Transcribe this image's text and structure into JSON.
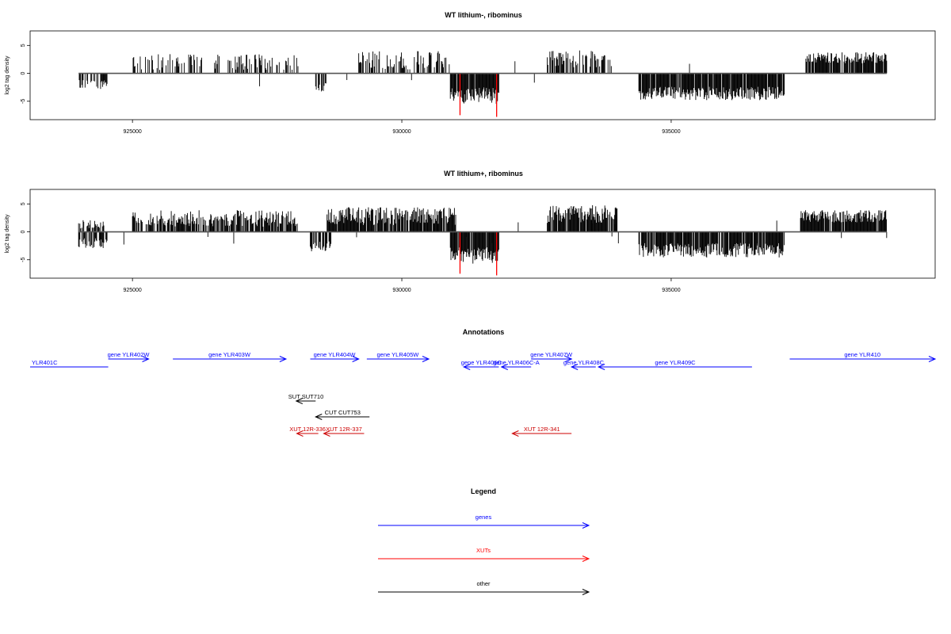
{
  "chart_data": [
    {
      "type": "bar",
      "title": "WT lithium-, ribominus",
      "ylabel": "log2 tag density",
      "xlabel": "",
      "xlim": [
        923100,
        939900
      ],
      "ylim": [
        -8.3,
        7.6
      ],
      "xticks": [
        925000,
        930000,
        935000
      ],
      "xtick_labels": [
        "925000",
        "930000",
        "935000"
      ],
      "yticks": [
        -5,
        0,
        5
      ],
      "ytick_labels": [
        "-5",
        "0",
        "5"
      ],
      "data_range": [
        924000,
        939000
      ],
      "highlight_color": "#ff0000",
      "bar_color": "#000000",
      "plus_regions": [
        {
          "start": 925000,
          "end": 928100,
          "mean": 2.0,
          "spread": 1.5,
          "density": 0.35
        },
        {
          "start": 929200,
          "end": 930900,
          "mean": 2.2,
          "spread": 1.8,
          "density": 0.5
        },
        {
          "start": 932700,
          "end": 933900,
          "mean": 2.6,
          "spread": 1.5,
          "density": 0.6
        },
        {
          "start": 937500,
          "end": 939000,
          "mean": 2.8,
          "spread": 1.0,
          "density": 0.85
        }
      ],
      "minus_regions": [
        {
          "start": 924000,
          "end": 924550,
          "mean": -2.0,
          "spread": 0.8,
          "density": 0.5
        },
        {
          "start": 928400,
          "end": 928600,
          "mean": -2.5,
          "spread": 0.8,
          "density": 0.7
        },
        {
          "start": 930900,
          "end": 931800,
          "mean": -4.0,
          "spread": 1.5,
          "density": 0.9
        },
        {
          "start": 934400,
          "end": 937100,
          "mean": -3.6,
          "spread": 1.2,
          "density": 0.9
        }
      ],
      "highlight_bars": [
        {
          "x": 931080,
          "y": -7.5
        },
        {
          "x": 931760,
          "y": -7.8
        }
      ]
    },
    {
      "type": "bar",
      "title": "WT lithium+, ribominus",
      "ylabel": "log2 tag density",
      "xlabel": "",
      "xlim": [
        923100,
        939900
      ],
      "ylim": [
        -8.3,
        7.6
      ],
      "xticks": [
        925000,
        930000,
        935000
      ],
      "xtick_labels": [
        "925000",
        "930000",
        "935000"
      ],
      "yticks": [
        -5,
        0,
        5
      ],
      "ytick_labels": [
        "-5",
        "0",
        "5"
      ],
      "data_range": [
        924000,
        939000
      ],
      "highlight_color": "#ff0000",
      "bar_color": "#000000",
      "plus_regions": [
        {
          "start": 924000,
          "end": 924500,
          "mean": 1.2,
          "spread": 0.9,
          "density": 0.4
        },
        {
          "start": 925000,
          "end": 928100,
          "mean": 2.4,
          "spread": 1.5,
          "density": 0.7
        },
        {
          "start": 928600,
          "end": 931000,
          "mean": 2.8,
          "spread": 1.6,
          "density": 0.9
        },
        {
          "start": 932700,
          "end": 934000,
          "mean": 3.2,
          "spread": 1.6,
          "density": 0.9
        },
        {
          "start": 937400,
          "end": 939000,
          "mean": 2.8,
          "spread": 1.1,
          "density": 0.9
        }
      ],
      "minus_regions": [
        {
          "start": 924000,
          "end": 924550,
          "mean": -2.0,
          "spread": 0.9,
          "density": 0.6
        },
        {
          "start": 928300,
          "end": 928700,
          "mean": -2.6,
          "spread": 0.9,
          "density": 0.7
        },
        {
          "start": 930900,
          "end": 931800,
          "mean": -4.2,
          "spread": 1.5,
          "density": 0.95
        },
        {
          "start": 934400,
          "end": 937100,
          "mean": -3.3,
          "spread": 1.3,
          "density": 0.9
        }
      ],
      "highlight_bars": [
        {
          "x": 931080,
          "y": -7.5
        },
        {
          "x": 931760,
          "y": -7.8
        }
      ]
    }
  ],
  "annotations": {
    "title": "Annotations",
    "features": [
      {
        "label": "YLR401C",
        "start": 923100,
        "end": 924550,
        "strand": "-",
        "type": "gene",
        "row": 1
      },
      {
        "label": "gene YLR402W",
        "start": 924550,
        "end": 925300,
        "strand": "+",
        "type": "gene",
        "row": 0
      },
      {
        "label": "gene YLR403W",
        "start": 925750,
        "end": 927850,
        "strand": "+",
        "type": "gene",
        "row": 0
      },
      {
        "label": "gene YLR404W",
        "start": 928300,
        "end": 929200,
        "strand": "+",
        "type": "gene",
        "row": 0
      },
      {
        "label": "gene YLR405W",
        "start": 929350,
        "end": 930500,
        "strand": "+",
        "type": "gene",
        "row": 0
      },
      {
        "label": "gene YLR406C",
        "start": 931150,
        "end": 931800,
        "strand": "-",
        "type": "gene",
        "row": 1
      },
      {
        "label": "gene YLR406C-A",
        "start": 931850,
        "end": 932400,
        "strand": "-",
        "type": "gene",
        "row": 1
      },
      {
        "label": "gene YLR407W",
        "start": 932400,
        "end": 933150,
        "strand": "+",
        "type": "gene",
        "row": 0
      },
      {
        "label": "gene YLR408C",
        "start": 933150,
        "end": 933600,
        "strand": "-",
        "type": "gene",
        "row": 1
      },
      {
        "label": "gene YLR409C",
        "start": 933650,
        "end": 936500,
        "strand": "-",
        "type": "gene",
        "row": 1
      },
      {
        "label": "gene YLR410",
        "start": 937200,
        "end": 939900,
        "strand": "+",
        "type": "gene",
        "row": 0
      },
      {
        "label": "SUT SUT710",
        "start": 928040,
        "end": 928400,
        "strand": "-",
        "type": "other",
        "row": 3
      },
      {
        "label": "CUT CUT753",
        "start": 928400,
        "end": 929400,
        "strand": "-",
        "type": "other",
        "row": 4
      },
      {
        "label": "XUT 12R-336",
        "start": 928050,
        "end": 928450,
        "strand": "-",
        "type": "xut",
        "row": 5
      },
      {
        "label": "XUT 12R-337",
        "start": 928550,
        "end": 929300,
        "strand": "-",
        "type": "xut",
        "row": 5
      },
      {
        "label": "XUT 12R-341",
        "start": 932050,
        "end": 933150,
        "strand": "-",
        "type": "xut",
        "row": 5
      }
    ]
  },
  "legend": {
    "title": "Legend",
    "items": [
      {
        "label": "genes",
        "color": "#0000ff"
      },
      {
        "label": "XUTs",
        "color": "#ff0000"
      },
      {
        "label": "other",
        "color": "#000000"
      }
    ]
  },
  "colors": {
    "gene": "#0000ff",
    "xut": "#cc0000",
    "other": "#000000",
    "axis": "#000000"
  }
}
